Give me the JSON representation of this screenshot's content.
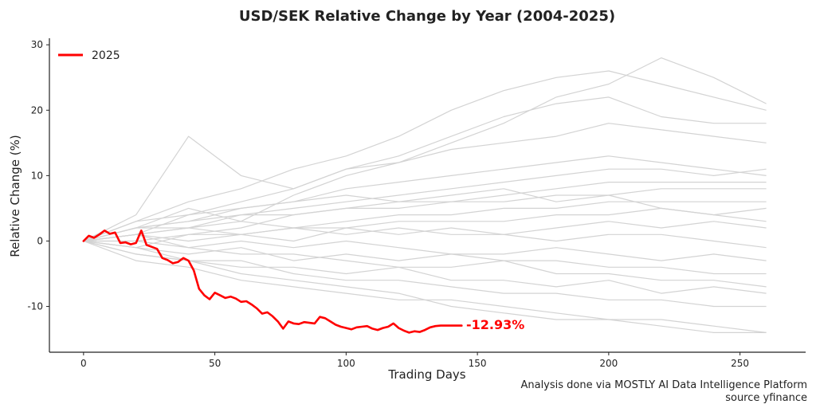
{
  "chart_data": {
    "type": "line",
    "title": "USD/SEK Relative Change by Year (2004-2025)",
    "xlabel": "Trading Days",
    "ylabel": "Relative Change (%)",
    "xlim": [
      -13,
      275
    ],
    "ylim": [
      -17,
      31
    ],
    "xticks": [
      0,
      50,
      100,
      150,
      200,
      250
    ],
    "yticks": [
      -10,
      0,
      10,
      20,
      30
    ],
    "grid": false,
    "legend_position": "top-left",
    "highlight": {
      "name": "2025",
      "color": "#ff0000",
      "x": [
        0,
        2,
        4,
        6,
        8,
        10,
        12,
        14,
        16,
        18,
        20,
        22,
        24,
        26,
        28,
        30,
        32,
        34,
        36,
        38,
        40,
        42,
        44,
        46,
        48,
        50,
        52,
        54,
        56,
        58,
        60,
        62,
        64,
        66,
        68,
        70,
        72,
        74,
        76,
        78,
        80,
        82,
        84,
        86,
        88,
        90,
        92,
        94,
        96,
        98,
        100,
        102,
        104,
        106,
        108,
        110,
        112,
        114,
        116,
        118,
        120,
        122,
        124,
        126,
        128,
        130,
        132,
        134,
        136,
        140,
        144
      ],
      "values": [
        0,
        0.8,
        0.5,
        1.0,
        1.6,
        1.1,
        1.3,
        -0.3,
        -0.2,
        -0.5,
        -0.3,
        1.6,
        -0.6,
        -0.9,
        -1.2,
        -2.6,
        -2.9,
        -3.4,
        -3.2,
        -2.6,
        -3.0,
        -4.5,
        -7.3,
        -8.3,
        -8.9,
        -7.9,
        -8.3,
        -8.7,
        -8.5,
        -8.8,
        -9.3,
        -9.2,
        -9.7,
        -10.3,
        -11.1,
        -10.9,
        -11.5,
        -12.3,
        -13.4,
        -12.3,
        -12.6,
        -12.7,
        -12.4,
        -12.5,
        -12.6,
        -11.6,
        -11.8,
        -12.3,
        -12.8,
        -13.1,
        -13.3,
        -13.5,
        -13.2,
        -13.1,
        -13.0,
        -13.4,
        -13.6,
        -13.3,
        -13.1,
        -12.6,
        -13.3,
        -13.7,
        -14.0,
        -13.8,
        -13.9,
        -13.6,
        -13.2,
        -13.0,
        -12.93,
        -12.93,
        -12.93
      ]
    },
    "annotation": "-12.93%",
    "background_series_color": "#d3d3d3",
    "background_x": [
      0,
      20,
      40,
      60,
      80,
      100,
      120,
      140,
      160,
      180,
      200,
      220,
      240,
      260
    ],
    "background_series": [
      [
        0,
        2,
        5,
        3,
        7,
        10,
        12,
        15,
        18,
        22,
        24,
        28,
        25,
        21
      ],
      [
        0,
        3,
        6,
        8,
        11,
        13,
        16,
        20,
        23,
        25,
        26,
        24,
        22,
        20
      ],
      [
        0,
        1,
        4,
        6,
        8,
        11,
        13,
        16,
        19,
        21,
        22,
        19,
        18,
        18
      ],
      [
        0,
        4,
        16,
        10,
        8,
        11,
        12,
        14,
        15,
        16,
        18,
        17,
        16,
        15
      ],
      [
        0,
        2,
        3,
        5,
        6,
        8,
        9,
        10,
        11,
        12,
        13,
        12,
        11,
        10
      ],
      [
        0,
        1,
        2,
        4,
        5,
        6,
        7,
        8,
        9,
        10,
        11,
        11,
        10,
        11
      ],
      [
        0,
        -1,
        1,
        2,
        4,
        5,
        6,
        6,
        7,
        8,
        9,
        9,
        9,
        9
      ],
      [
        0,
        2,
        3,
        4,
        4,
        5,
        5,
        6,
        6,
        7,
        7,
        8,
        8,
        8
      ],
      [
        0,
        1,
        2,
        3,
        2,
        3,
        4,
        4,
        5,
        5,
        6,
        6,
        6,
        6
      ],
      [
        0,
        0,
        1,
        1,
        2,
        2,
        3,
        3,
        3,
        4,
        4,
        5,
        4,
        5
      ],
      [
        0,
        1,
        0,
        1,
        0,
        2,
        1,
        2,
        1,
        2,
        3,
        2,
        3,
        2
      ],
      [
        0,
        2,
        2,
        1,
        2,
        1,
        2,
        1,
        1,
        0,
        1,
        1,
        0,
        -1
      ],
      [
        0,
        -1,
        -2,
        -1,
        -3,
        -2,
        -3,
        -2,
        -3,
        -3,
        -4,
        -4,
        -5,
        -5
      ],
      [
        0,
        -2,
        -3,
        -4,
        -4,
        -5,
        -4,
        -6,
        -6,
        -7,
        -6,
        -8,
        -7,
        -8
      ],
      [
        0,
        -1,
        -3,
        -3,
        -5,
        -6,
        -6,
        -7,
        -8,
        -8,
        -9,
        -9,
        -10,
        -10
      ],
      [
        0,
        -3,
        -4,
        -6,
        -7,
        -8,
        -9,
        -9,
        -10,
        -11,
        -12,
        -12,
        -13,
        -14
      ],
      [
        0,
        -2,
        -3,
        -5,
        -6,
        -7,
        -8,
        -10,
        -11,
        -12,
        -12,
        -13,
        -14,
        -14
      ],
      [
        0,
        1,
        -1,
        -2,
        -2,
        -3,
        -4,
        -4,
        -3,
        -5,
        -5,
        -6,
        -6,
        -7
      ],
      [
        0,
        0,
        -1,
        0,
        -1,
        0,
        -1,
        -2,
        -2,
        -1,
        -2,
        -3,
        -2,
        -3
      ],
      [
        0,
        3,
        4,
        5,
        6,
        7,
        6,
        7,
        8,
        6,
        7,
        5,
        4,
        3
      ]
    ]
  },
  "credits": {
    "line1": "Analysis done via MOSTLY AI Data Intelligence Platform",
    "line2": "source yfinance"
  }
}
